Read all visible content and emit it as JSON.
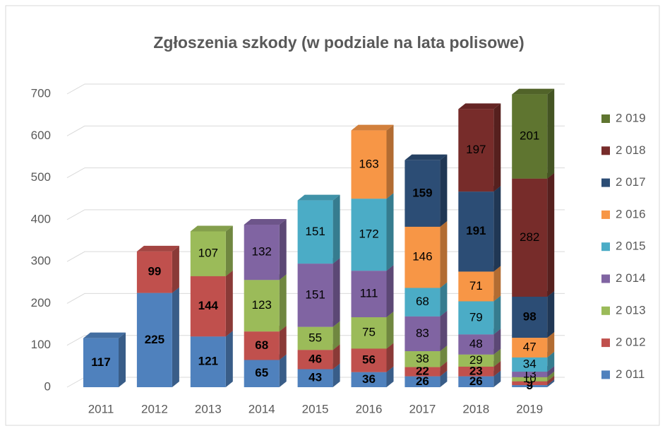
{
  "chart_data": {
    "type": "bar3d_stacked",
    "title": "Zgłoszenia szkody (w podziale na lata polisowe)",
    "categories": [
      "2011",
      "2012",
      "2013",
      "2014",
      "2015",
      "2016",
      "2017",
      "2018",
      "2019"
    ],
    "ylim": [
      0,
      700
    ],
    "yticks": [
      0,
      100,
      200,
      300,
      400,
      500,
      600,
      700
    ],
    "grid": true,
    "legend": "right",
    "series": [
      {
        "name": "2 011",
        "color": "#4f81bd",
        "label_bold": true,
        "values": [
          117,
          225,
          121,
          65,
          43,
          36,
          26,
          26,
          5
        ]
      },
      {
        "name": "2 012",
        "color": "#c0504d",
        "label_bold": true,
        "values": [
          null,
          99,
          144,
          68,
          46,
          56,
          22,
          23,
          9
        ]
      },
      {
        "name": "2 013",
        "color": "#9bbb59",
        "label_bold": false,
        "values": [
          null,
          null,
          107,
          123,
          55,
          75,
          38,
          29,
          10
        ]
      },
      {
        "name": "2 014",
        "color": "#8064a2",
        "label_bold": false,
        "values": [
          null,
          null,
          null,
          132,
          151,
          111,
          83,
          48,
          13
        ]
      },
      {
        "name": "2 015",
        "color": "#4bacc6",
        "label_bold": false,
        "values": [
          null,
          null,
          null,
          null,
          151,
          172,
          68,
          79,
          34
        ]
      },
      {
        "name": "2 016",
        "color": "#f79646",
        "label_bold": false,
        "values": [
          null,
          null,
          null,
          null,
          null,
          163,
          146,
          71,
          47
        ]
      },
      {
        "name": "2 017",
        "color": "#2c4d75",
        "label_bold": true,
        "values": [
          null,
          null,
          null,
          null,
          null,
          null,
          159,
          191,
          98
        ]
      },
      {
        "name": "2 018",
        "color": "#772c2a",
        "label_bold": false,
        "values": [
          null,
          null,
          null,
          null,
          null,
          null,
          null,
          197,
          282
        ]
      },
      {
        "name": "2 019",
        "color": "#5f7530",
        "label_bold": false,
        "values": [
          null,
          null,
          null,
          null,
          null,
          null,
          null,
          null,
          201
        ]
      }
    ]
  }
}
